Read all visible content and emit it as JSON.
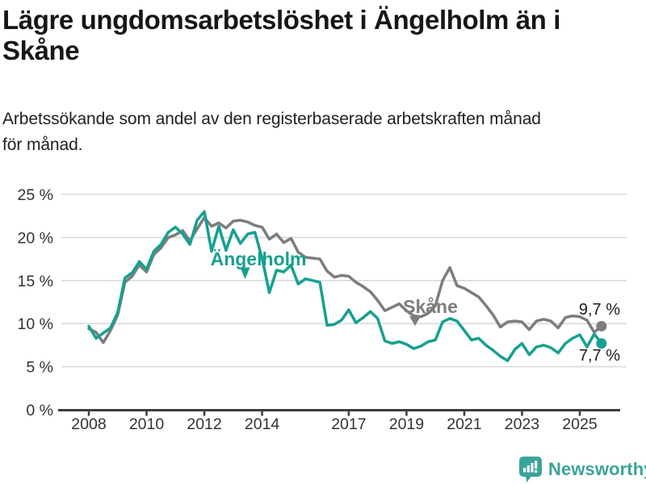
{
  "header": {
    "title_line1": "Lägre ungdomsarbetslöshet i Ängelholm än i",
    "title_line2": "Skåne",
    "subtitle_line1": "Arbetssökande som andel av den registerbaserade arbetskraften månad",
    "subtitle_line2": "för månad."
  },
  "footer": {
    "brand": "Newsworthy"
  },
  "colors": {
    "accent_teal": "#16a090",
    "line_gray": "#7d7d7e",
    "grid": "#dadada",
    "axis": "#3d3d3d",
    "tick_text": "#333333",
    "value_text": "#1c1c1c",
    "logo_teal": "#3aa49a"
  },
  "chart_data": {
    "type": "line",
    "unit": "%",
    "x_label_note": "years, monthly data sampled quarterly",
    "ylim": [
      0,
      25
    ],
    "xlim": [
      2008,
      2025.75
    ],
    "grid": true,
    "legend_position": "inline-labels",
    "x_ticks": [
      2008,
      2010,
      2012,
      2014,
      2017,
      2019,
      2021,
      2023,
      2025
    ],
    "x_tick_labels": [
      "2008",
      "2010",
      "2012",
      "2014",
      "2017",
      "2019",
      "2021",
      "2023",
      "2025"
    ],
    "y_ticks": [
      0,
      5,
      10,
      15,
      20,
      25
    ],
    "y_tick_labels": [
      "0 %",
      "5 %",
      "10 %",
      "15 %",
      "20 %",
      "25 %"
    ],
    "x": [
      2008.0,
      2008.25,
      2008.5,
      2008.75,
      2009.0,
      2009.25,
      2009.5,
      2009.75,
      2010.0,
      2010.25,
      2010.5,
      2010.75,
      2011.0,
      2011.25,
      2011.5,
      2011.75,
      2012.0,
      2012.25,
      2012.5,
      2012.75,
      2013.0,
      2013.25,
      2013.5,
      2013.75,
      2014.0,
      2014.25,
      2014.5,
      2014.75,
      2015.0,
      2015.25,
      2015.5,
      2015.75,
      2016.0,
      2016.25,
      2016.5,
      2016.75,
      2017.0,
      2017.25,
      2017.5,
      2017.75,
      2018.0,
      2018.25,
      2018.5,
      2018.75,
      2019.0,
      2019.25,
      2019.5,
      2019.75,
      2020.0,
      2020.25,
      2020.5,
      2020.75,
      2021.0,
      2021.25,
      2021.5,
      2021.75,
      2022.0,
      2022.25,
      2022.5,
      2022.75,
      2023.0,
      2023.25,
      2023.5,
      2023.75,
      2024.0,
      2024.25,
      2024.5,
      2024.75,
      2025.0,
      2025.25,
      2025.5,
      2025.75
    ],
    "series": [
      {
        "id": "angelholm",
        "name": "Ängelholm",
        "color": "#16a090",
        "end_label": "7,7 %",
        "end_value": 7.7,
        "value_label_position": "below",
        "values": [
          9.7,
          8.3,
          8.9,
          9.5,
          11.3,
          15.3,
          15.9,
          17.2,
          16.3,
          18.4,
          19.2,
          20.6,
          21.2,
          20.4,
          19.2,
          22.0,
          23.0,
          18.4,
          21.3,
          18.5,
          20.9,
          19.3,
          20.4,
          20.6,
          17.6,
          13.6,
          16.2,
          16.0,
          16.8,
          14.6,
          15.2,
          15.0,
          14.8,
          9.8,
          9.9,
          10.4,
          11.6,
          10.1,
          10.7,
          11.4,
          10.6,
          8.0,
          7.7,
          7.9,
          7.6,
          7.1,
          7.4,
          7.9,
          8.1,
          10.2,
          10.6,
          10.3,
          9.2,
          8.1,
          8.3,
          7.5,
          6.9,
          6.2,
          5.7,
          7.0,
          7.7,
          6.4,
          7.3,
          7.5,
          7.2,
          6.6,
          7.7,
          8.3,
          8.7,
          7.3,
          8.8,
          7.7
        ]
      },
      {
        "id": "skane",
        "name": "Skåne",
        "color": "#7d7d7e",
        "end_label": "9,7 %",
        "end_value": 9.7,
        "value_label_position": "above",
        "values": [
          9.4,
          9.0,
          7.8,
          9.2,
          11.0,
          14.8,
          15.5,
          16.8,
          16.0,
          18.0,
          18.8,
          20.0,
          20.3,
          20.8,
          19.6,
          21.0,
          22.3,
          21.3,
          21.7,
          21.1,
          21.9,
          22.0,
          21.8,
          21.4,
          21.2,
          19.8,
          20.4,
          19.4,
          19.9,
          18.3,
          17.7,
          17.6,
          17.5,
          16.1,
          15.4,
          15.6,
          15.5,
          14.8,
          14.3,
          13.7,
          12.7,
          11.5,
          11.9,
          12.3,
          11.5,
          10.9,
          10.8,
          11.2,
          12.1,
          15.0,
          16.5,
          14.4,
          14.1,
          13.6,
          13.1,
          12.1,
          11.0,
          9.6,
          10.2,
          10.3,
          10.2,
          9.3,
          10.3,
          10.5,
          10.3,
          9.5,
          10.7,
          10.9,
          10.8,
          10.4,
          9.0,
          9.7
        ]
      }
    ]
  }
}
